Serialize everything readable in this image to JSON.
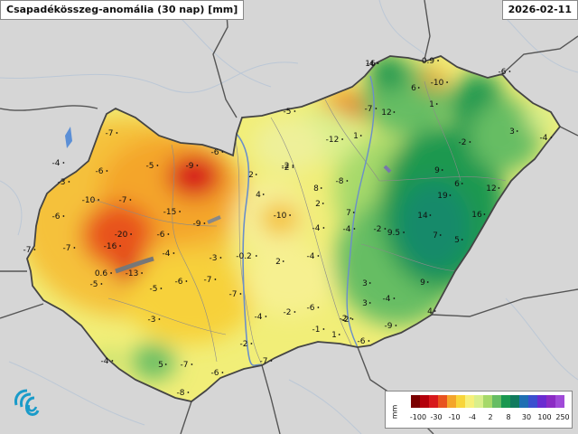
{
  "header": {
    "title": "Csapadékösszeg-anomália (30 nap) [mm]",
    "date": "2026-02-11"
  },
  "legend": {
    "unit": "mm",
    "colors": [
      "#7a0000",
      "#b3000b",
      "#d7191c",
      "#e8531f",
      "#f4a52a",
      "#f8d53a",
      "#f6f07a",
      "#d9ef8b",
      "#a6d96a",
      "#66bd63",
      "#1a9850",
      "#117a5e",
      "#1f6fb3",
      "#3b4fcf",
      "#6a2bd0",
      "#8b2bc4",
      "#a04ad8"
    ],
    "ticks": [
      "-100",
      "-30",
      "-10",
      "-4",
      "2",
      "8",
      "30",
      "100",
      "250"
    ]
  },
  "map": {
    "icons": [
      "logo-swirl-icon"
    ],
    "labels": [
      {
        "t": "16"
      },
      {
        "t": "0.9"
      },
      {
        "t": "-6"
      },
      {
        "t": "6"
      },
      {
        "t": "-10"
      },
      {
        "t": "1"
      },
      {
        "t": "-7"
      },
      {
        "t": "12"
      },
      {
        "t": "-5"
      },
      {
        "t": "-12"
      },
      {
        "t": "1"
      },
      {
        "t": "3"
      },
      {
        "t": "-4"
      },
      {
        "t": "-2"
      },
      {
        "t": "-7"
      },
      {
        "t": "-4"
      },
      {
        "t": "-6"
      },
      {
        "t": "-5"
      },
      {
        "t": "-9"
      },
      {
        "t": "-6"
      },
      {
        "t": "-3"
      },
      {
        "t": "-10"
      },
      {
        "t": "-7"
      },
      {
        "t": "-6"
      },
      {
        "t": "-15"
      },
      {
        "t": "-9"
      },
      {
        "t": "-20"
      },
      {
        "t": "-16"
      },
      {
        "t": "-6"
      },
      {
        "t": "-7"
      },
      {
        "t": "-7"
      },
      {
        "t": "-4"
      },
      {
        "t": "0.6"
      },
      {
        "t": "-13"
      },
      {
        "t": "-5"
      },
      {
        "t": "-5"
      },
      {
        "t": "-6"
      },
      {
        "t": "-7"
      },
      {
        "t": "-3"
      },
      {
        "t": "-0.2"
      },
      {
        "t": "2"
      },
      {
        "t": "-4"
      },
      {
        "t": "2"
      },
      {
        "t": "4"
      },
      {
        "t": "-2"
      },
      {
        "t": "8"
      },
      {
        "t": "-8"
      },
      {
        "t": "2"
      },
      {
        "t": "-10"
      },
      {
        "t": "-4"
      },
      {
        "t": "-4"
      },
      {
        "t": "9.5"
      },
      {
        "t": "3"
      },
      {
        "t": "9"
      },
      {
        "t": "-2"
      },
      {
        "t": "19"
      },
      {
        "t": "6"
      },
      {
        "t": "12"
      },
      {
        "t": "14"
      },
      {
        "t": "16"
      },
      {
        "t": "7"
      },
      {
        "t": "5"
      },
      {
        "t": "9"
      },
      {
        "t": "-4"
      },
      {
        "t": "-7"
      },
      {
        "t": "-4"
      },
      {
        "t": "-2"
      },
      {
        "t": "-6"
      },
      {
        "t": "-2"
      },
      {
        "t": "-3"
      },
      {
        "t": "-1"
      },
      {
        "t": "1"
      },
      {
        "t": "-6"
      },
      {
        "t": "-9"
      },
      {
        "t": "4"
      },
      {
        "t": "-2"
      },
      {
        "t": "-7"
      },
      {
        "t": "-6"
      },
      {
        "t": "-8"
      },
      {
        "t": "-7"
      },
      {
        "t": "-4"
      },
      {
        "t": "5"
      },
      {
        "t": "7"
      },
      {
        "t": "-2"
      },
      {
        "t": "-2"
      },
      {
        "t": "3"
      },
      {
        "t": "-4"
      }
    ]
  }
}
